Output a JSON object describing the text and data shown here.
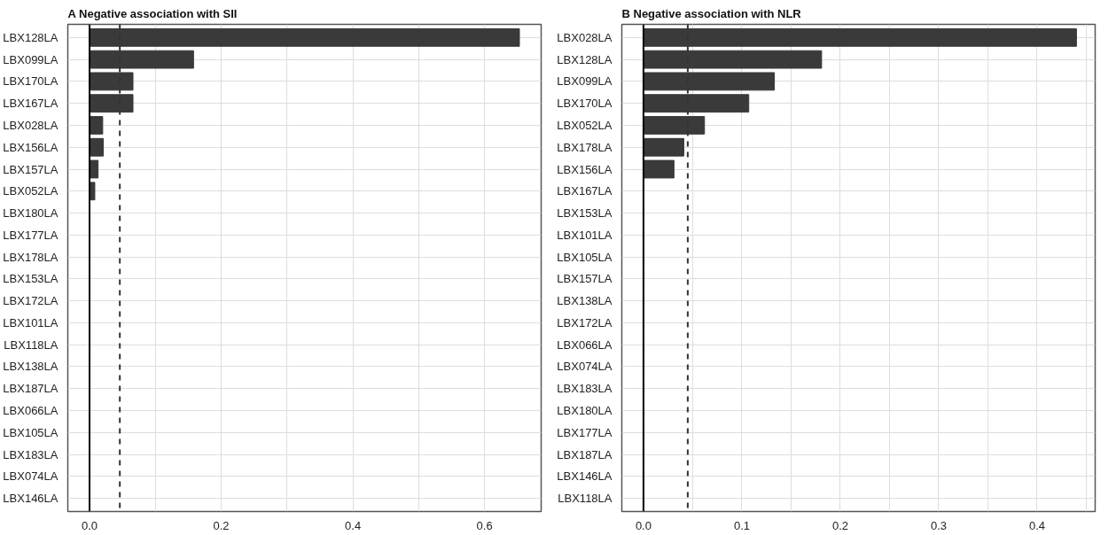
{
  "chart_data": [
    {
      "type": "bar",
      "orientation": "horizontal",
      "title": "A  Negative association with SII",
      "categories": [
        "LBX128LA",
        "LBX099LA",
        "LBX170LA",
        "LBX167LA",
        "LBX028LA",
        "LBX156LA",
        "LBX157LA",
        "LBX052LA",
        "LBX180LA",
        "LBX177LA",
        "LBX178LA",
        "LBX153LA",
        "LBX172LA",
        "LBX101LA",
        "LBX118LA",
        "LBX138LA",
        "LBX187LA",
        "LBX066LA",
        "LBX105LA",
        "LBX183LA",
        "LBX074LA",
        "LBX146LA"
      ],
      "values": [
        0.653,
        0.158,
        0.066,
        0.066,
        0.02,
        0.021,
        0.013,
        0.008,
        0,
        0,
        0,
        0,
        0,
        0,
        0,
        0,
        0,
        0,
        0,
        0,
        0,
        0
      ],
      "color": "#3a3a3a",
      "xlim": [
        -0.033,
        0.686
      ],
      "xticks": [
        {
          "value": 0,
          "label": "0.0"
        },
        {
          "value": 0.1,
          "label": null
        },
        {
          "value": 0.2,
          "label": "0.2"
        },
        {
          "value": 0.3,
          "label": null
        },
        {
          "value": 0.4,
          "label": "0.4"
        },
        {
          "value": 0.5,
          "label": null
        },
        {
          "value": 0.6,
          "label": "0.6"
        }
      ],
      "grid": true,
      "ref_lines": [
        {
          "axis": "x",
          "value": 0,
          "line_style": "solid",
          "color": "#000000"
        },
        {
          "axis": "x",
          "value": 0.046,
          "line_style": "dashed",
          "color": "#333333"
        }
      ]
    },
    {
      "type": "bar",
      "orientation": "horizontal",
      "title": "B  Negative association with NLR",
      "categories": [
        "LBX028LA",
        "LBX128LA",
        "LBX099LA",
        "LBX170LA",
        "LBX052LA",
        "LBX178LA",
        "LBX156LA",
        "LBX167LA",
        "LBX153LA",
        "LBX101LA",
        "LBX105LA",
        "LBX157LA",
        "LBX138LA",
        "LBX172LA",
        "LBX066LA",
        "LBX074LA",
        "LBX183LA",
        "LBX180LA",
        "LBX177LA",
        "LBX187LA",
        "LBX146LA",
        "LBX118LA"
      ],
      "values": [
        0.44,
        0.181,
        0.133,
        0.107,
        0.062,
        0.041,
        0.031,
        0,
        0,
        0,
        0,
        0,
        0,
        0,
        0,
        0,
        0,
        0,
        0,
        0,
        0,
        0
      ],
      "color": "#3a3a3a",
      "xlim": [
        -0.022,
        0.459
      ],
      "xticks": [
        {
          "value": 0,
          "label": "0.0"
        },
        {
          "value": 0.05,
          "label": null
        },
        {
          "value": 0.1,
          "label": "0.1"
        },
        {
          "value": 0.15,
          "label": null
        },
        {
          "value": 0.2,
          "label": "0.2"
        },
        {
          "value": 0.25,
          "label": null
        },
        {
          "value": 0.3,
          "label": "0.3"
        },
        {
          "value": 0.35,
          "label": null
        },
        {
          "value": 0.4,
          "label": "0.4"
        },
        {
          "value": 0.45,
          "label": null
        }
      ],
      "grid": true,
      "ref_lines": [
        {
          "axis": "x",
          "value": 0,
          "line_style": "solid",
          "color": "#000000"
        },
        {
          "axis": "x",
          "value": 0.045,
          "line_style": "dashed",
          "color": "#333333"
        }
      ]
    }
  ]
}
